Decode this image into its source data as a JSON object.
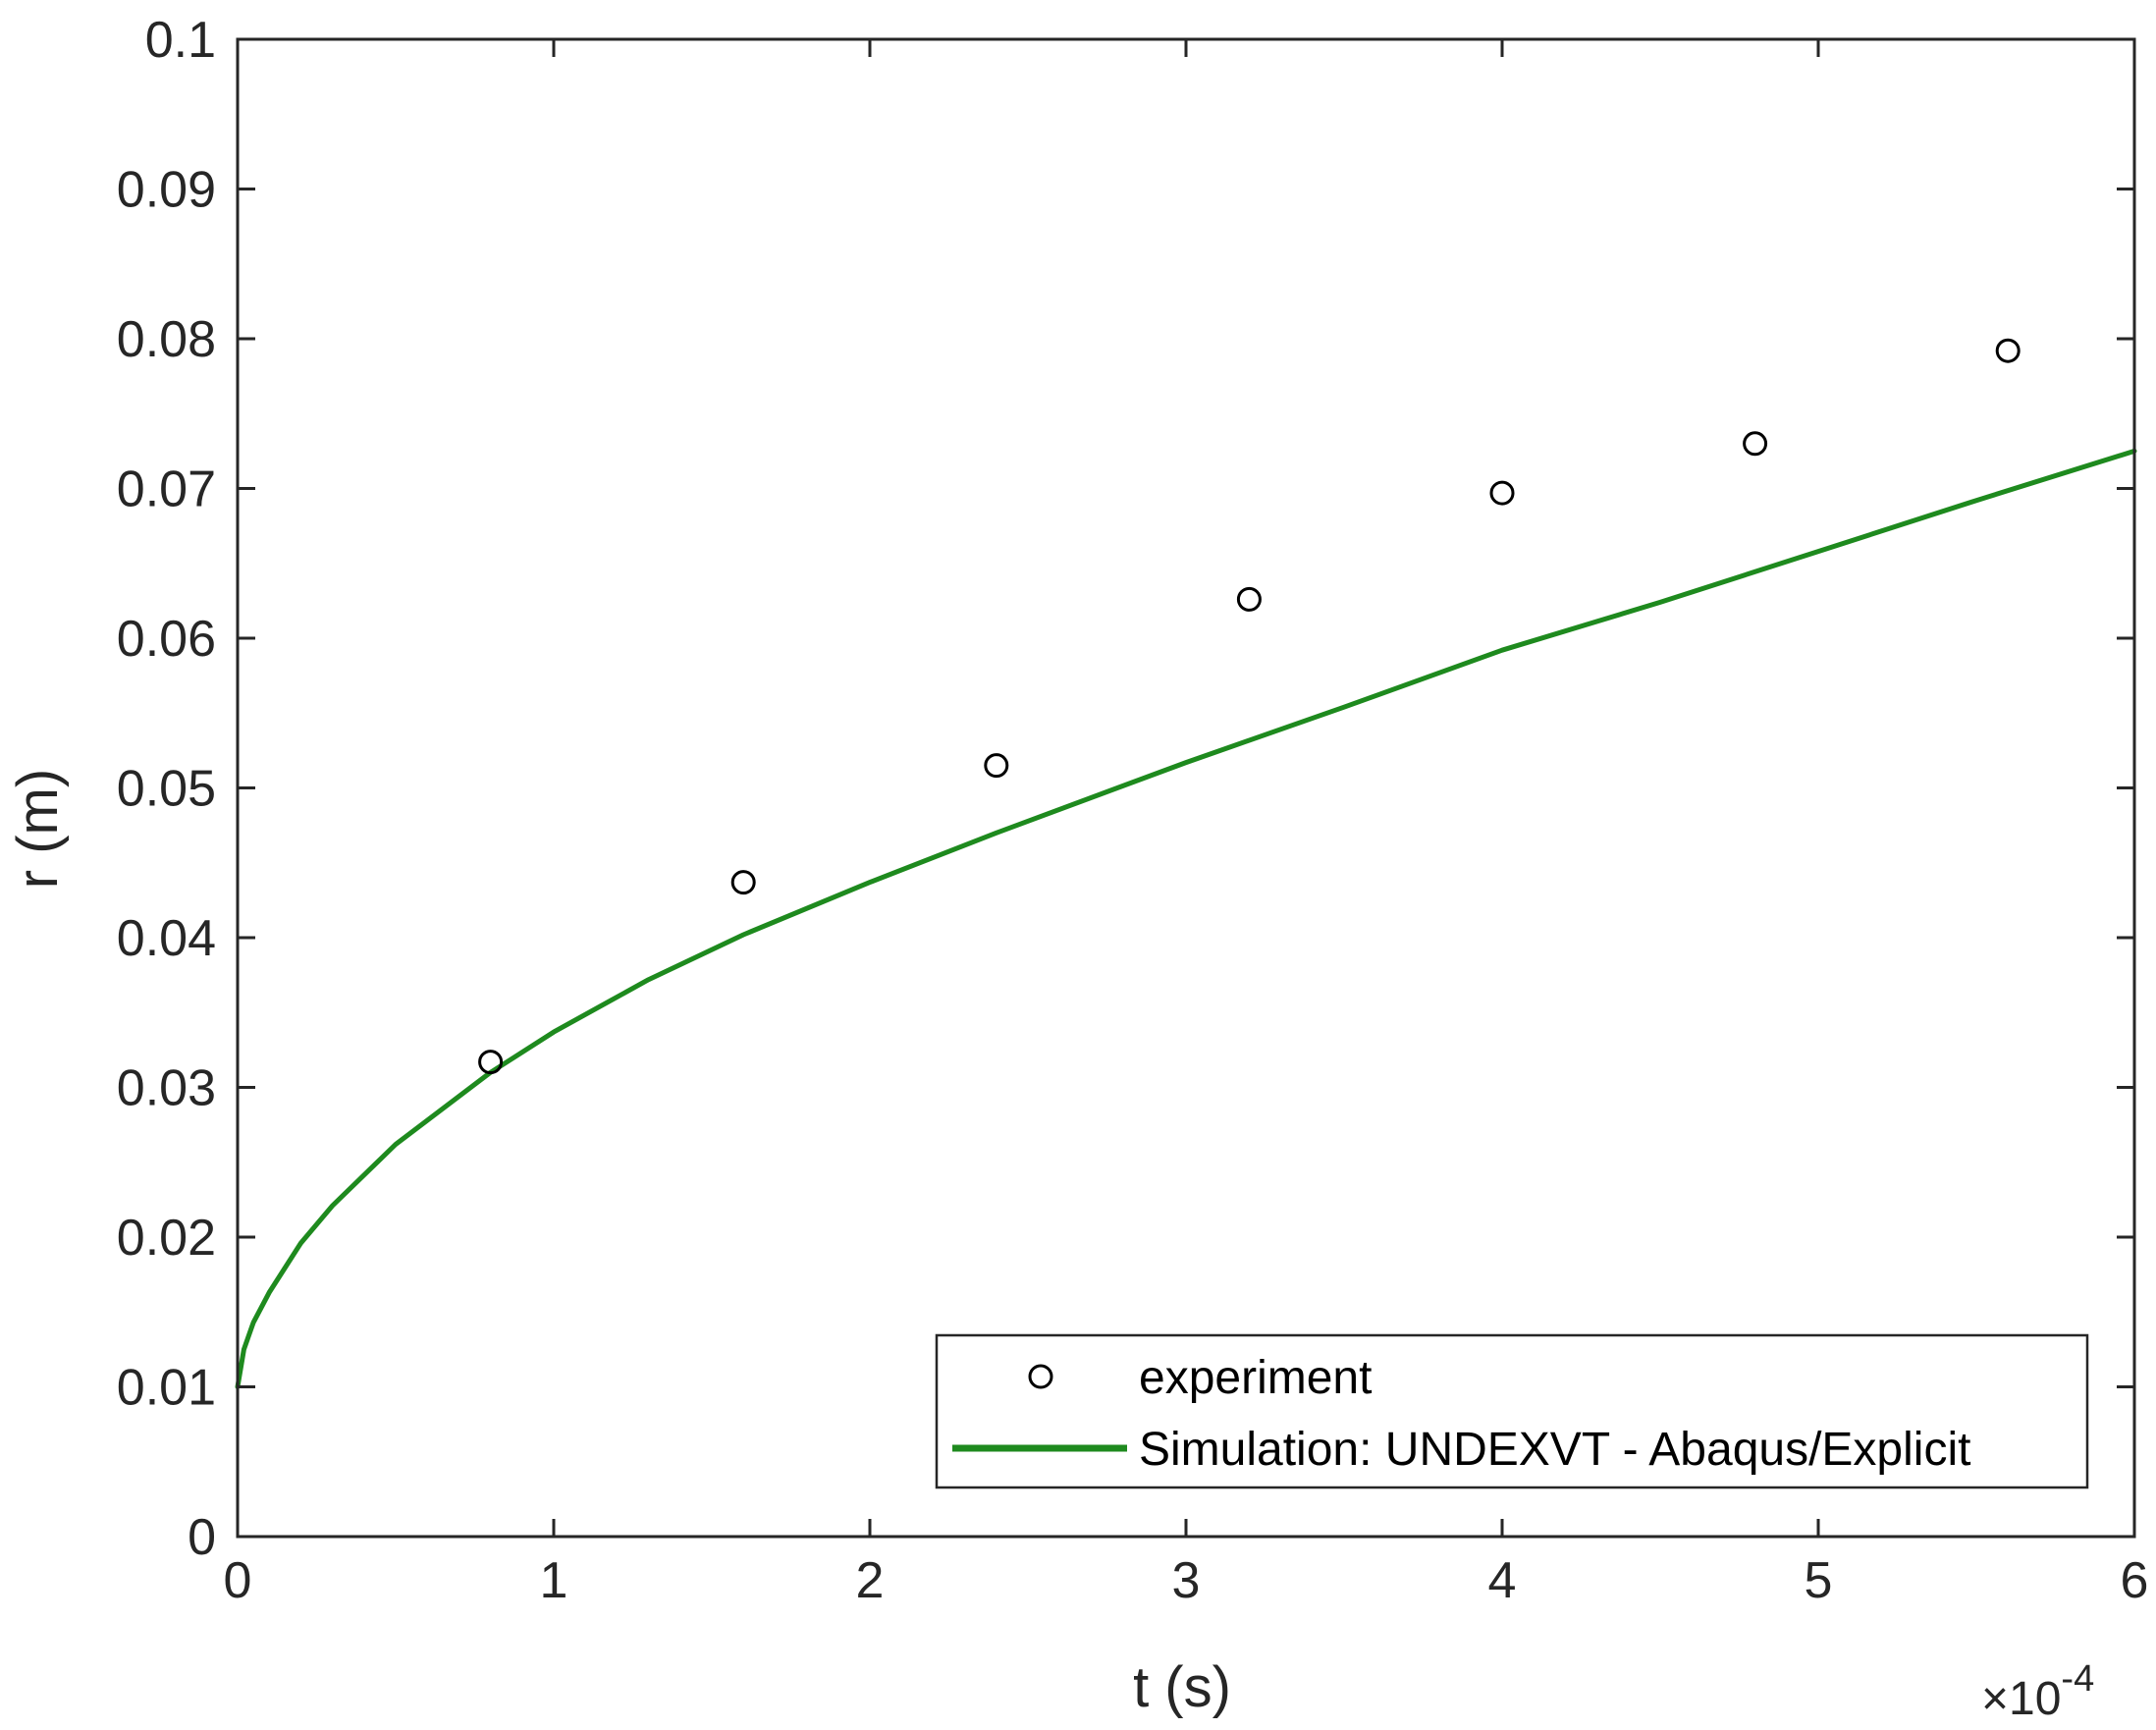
{
  "chart_data": {
    "type": "scatter",
    "xlabel": "t (s)",
    "ylabel": "r (m)",
    "x_exponent": {
      "base": "10",
      "power": "-4"
    },
    "xlim": [
      0,
      6
    ],
    "ylim": [
      0,
      0.1
    ],
    "xticks": [
      0,
      1,
      2,
      3,
      4,
      5,
      6
    ],
    "yticks": [
      0,
      0.01,
      0.02,
      0.03,
      0.04,
      0.05,
      0.06,
      0.07,
      0.08,
      0.09,
      0.1
    ],
    "xtick_labels": [
      "0",
      "1",
      "2",
      "3",
      "4",
      "5",
      "6"
    ],
    "ytick_labels": [
      "0",
      "0.01",
      "0.02",
      "0.03",
      "0.04",
      "0.05",
      "0.06",
      "0.07",
      "0.08",
      "0.09",
      "0.1"
    ],
    "grid": false,
    "legend_position": "bottom-right",
    "series": [
      {
        "name": "experiment",
        "kind": "scatter",
        "marker": "open-circle",
        "color": "#000000",
        "x": [
          0.8,
          1.6,
          2.4,
          3.2,
          4.0,
          4.8,
          5.6
        ],
        "y": [
          0.0317,
          0.0437,
          0.0515,
          0.0626,
          0.0697,
          0.073,
          0.0792
        ]
      },
      {
        "name": "Simulation: UNDEXVT - Abaqus/Explicit",
        "kind": "line",
        "color": "#1e8a1e",
        "x": [
          0.0,
          0.02,
          0.05,
          0.1,
          0.2,
          0.3,
          0.5,
          0.8,
          1.0,
          1.3,
          1.6,
          2.0,
          2.4,
          3.0,
          3.5,
          4.0,
          4.5,
          5.0,
          5.5,
          6.0
        ],
        "y": [
          0.01,
          0.0125,
          0.0143,
          0.0163,
          0.0196,
          0.0221,
          0.0262,
          0.031,
          0.0337,
          0.0372,
          0.0402,
          0.0437,
          0.047,
          0.0517,
          0.0554,
          0.0592,
          0.0624,
          0.0658,
          0.0692,
          0.0725
        ]
      }
    ]
  }
}
